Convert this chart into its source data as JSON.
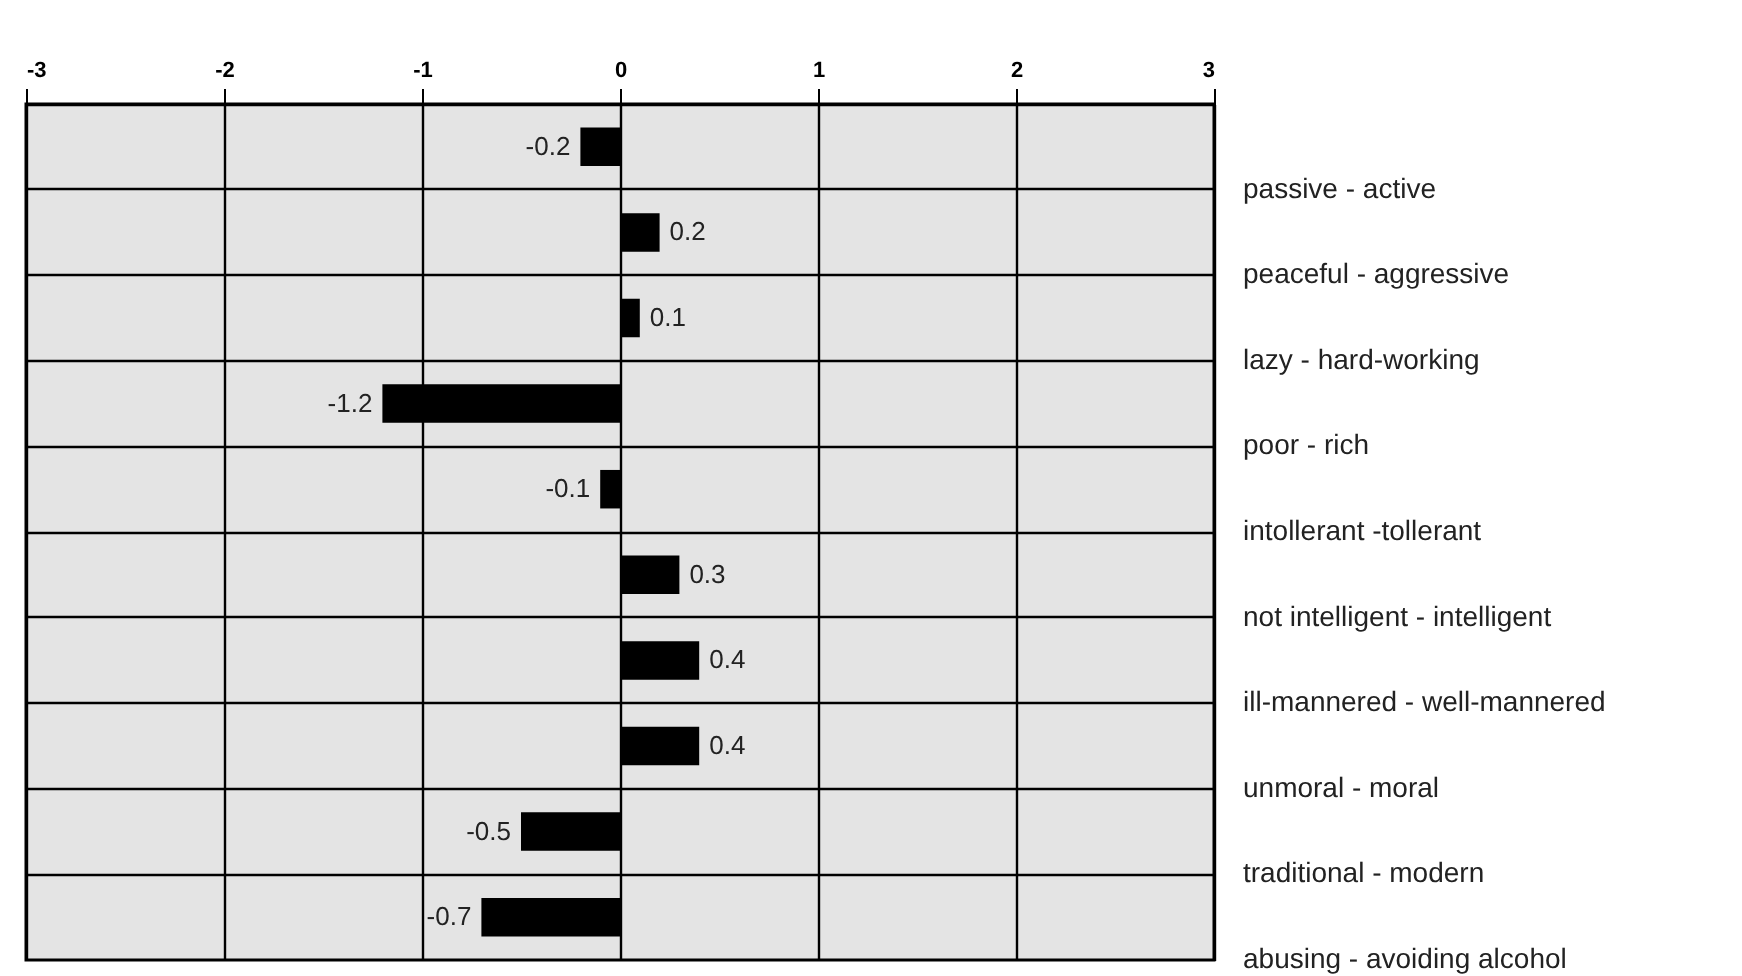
{
  "chart_data": {
    "type": "bar",
    "orientation": "horizontal",
    "categories": [
      "passive - active",
      "peaceful - aggressive",
      "lazy - hard-working",
      "poor - rich",
      "intollerant -tollerant",
      "not intelligent - intelligent",
      "ill-mannered - well-mannered",
      "unmoral - moral",
      "traditional - modern",
      "abusing - avoiding alcohol"
    ],
    "values": [
      -0.2,
      0.2,
      0.1,
      -1.2,
      -0.1,
      0.3,
      0.4,
      0.4,
      -0.5,
      -0.7
    ],
    "color": "#000000",
    "xlim": [
      -3,
      3
    ],
    "xticks": [
      -3,
      -2,
      -1,
      0,
      1,
      2,
      3
    ],
    "grid": true,
    "data_labels": true
  }
}
